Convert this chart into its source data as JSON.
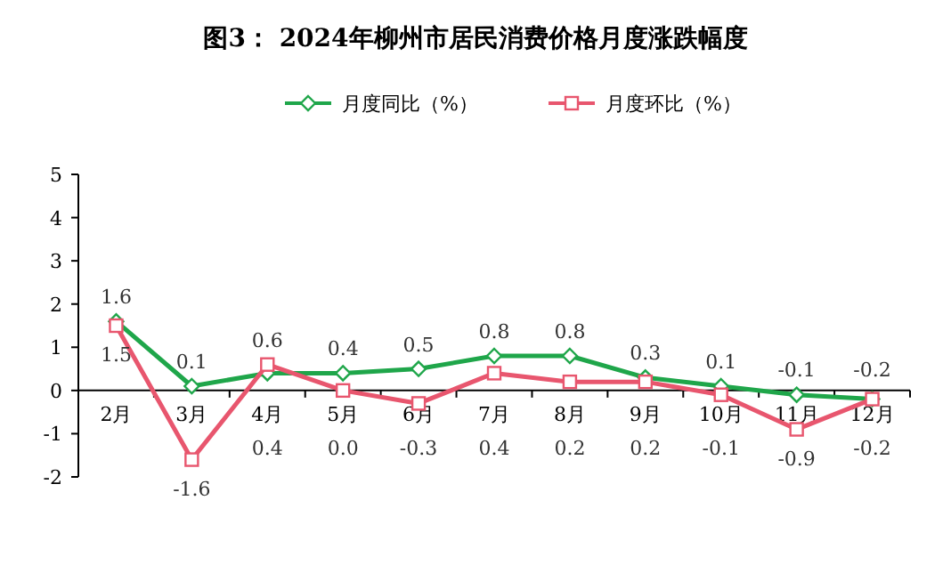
{
  "chart_data": {
    "type": "line",
    "title": "图3：    2024年柳州市居民消费价格月度涨跌幅度",
    "categories": [
      "2月",
      "3月",
      "4月",
      "5月",
      "6月",
      "7月",
      "8月",
      "9月",
      "10月",
      "11月",
      "12月"
    ],
    "series": [
      {
        "name": "月度同比（%）",
        "color": "#1fa64a",
        "marker": "diamond",
        "values": [
          1.6,
          0.1,
          0.4,
          0.4,
          0.5,
          0.8,
          0.8,
          0.3,
          0.1,
          -0.1,
          -0.2
        ],
        "value_labels": [
          "1.6",
          "0.1",
          "0.4",
          "0.4",
          "0.5",
          "0.8",
          "0.8",
          "0.3",
          "0.1",
          "-0.1",
          "-0.2"
        ]
      },
      {
        "name": "月度环比（%）",
        "color": "#e8566e",
        "marker": "square",
        "values": [
          1.5,
          -1.6,
          0.6,
          0.0,
          -0.3,
          0.4,
          0.2,
          0.2,
          -0.1,
          -0.9,
          -0.2
        ],
        "value_labels": [
          "1.5",
          "-1.6",
          "0.6",
          "0.0",
          "-0.3",
          "0.4",
          "0.2",
          "0.2",
          "-0.1",
          "-0.9",
          "-0.2"
        ]
      }
    ],
    "ylim": [
      -2,
      5
    ],
    "yticks": [
      -2,
      -1,
      0,
      1,
      2,
      3,
      4,
      5
    ],
    "grid": false,
    "legend": "top",
    "line_style": "solid"
  }
}
